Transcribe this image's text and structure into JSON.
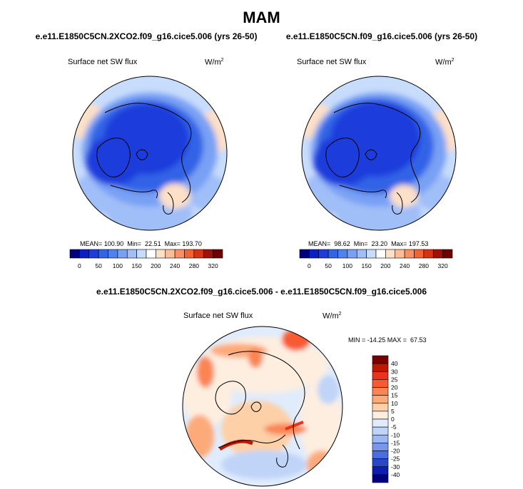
{
  "title": "MAM",
  "panels": [
    {
      "title": "e.e11.E1850C5CN.2XCO2.f09_g16.cice5.006 (yrs 26-50)",
      "variable": "Surface net SW flux",
      "unit": "W/m",
      "unit_sup": "2",
      "stats": "MEAN= 100.90  Min=  22.51  Max= 193.70"
    },
    {
      "title": "e.e11.E1850C5CN.f09_g16.cice5.006 (yrs 26-50)",
      "variable": "Surface net SW flux",
      "unit": "W/m",
      "unit_sup": "2",
      "stats": "MEAN=  98.62  Min=  23.20  Max= 197.53"
    },
    {
      "title": "e.e11.E1850C5CN.2XCO2.f09_g16.cice5.006 - e.e11.E1850C5CN.f09_g16.cice5.006",
      "variable": "Surface net SW flux",
      "unit": "W/m",
      "unit_sup": "2",
      "stats": "MIN = -14.25 MAX =  67.53"
    }
  ],
  "chart_data": [
    {
      "type": "heatmap",
      "projection": "polar stereographic (north)",
      "title": "e.e11.E1850C5CN.2XCO2.f09_g16.cice5.006 (yrs 26-50)",
      "subtitle": "Surface net SW flux",
      "units": "W/m2",
      "stats": {
        "mean": 100.9,
        "min": 22.51,
        "max": 193.7
      },
      "colorbar": {
        "orientation": "horizontal",
        "tick_labels": [
          "0",
          "50",
          "100",
          "150",
          "200",
          "240",
          "280",
          "320"
        ],
        "levels": [
          0,
          25,
          50,
          75,
          100,
          125,
          150,
          175,
          200,
          220,
          240,
          260,
          280,
          300,
          320
        ],
        "colors": [
          "#00007f",
          "#0a1ec8",
          "#1e3cdc",
          "#3264e6",
          "#5082ee",
          "#78a0f4",
          "#a0bef8",
          "#c8dcfc",
          "#ffffff",
          "#fde0c8",
          "#fcbc96",
          "#f99064",
          "#f26432",
          "#d73214",
          "#a01008",
          "#700000"
        ]
      }
    },
    {
      "type": "heatmap",
      "projection": "polar stereographic (north)",
      "title": "e.e11.E1850C5CN.f09_g16.cice5.006 (yrs 26-50)",
      "subtitle": "Surface net SW flux",
      "units": "W/m2",
      "stats": {
        "mean": 98.62,
        "min": 23.2,
        "max": 197.53
      },
      "colorbar": {
        "orientation": "horizontal",
        "tick_labels": [
          "0",
          "50",
          "100",
          "150",
          "200",
          "240",
          "280",
          "320"
        ],
        "levels": [
          0,
          25,
          50,
          75,
          100,
          125,
          150,
          175,
          200,
          220,
          240,
          260,
          280,
          300,
          320
        ],
        "colors": [
          "#00007f",
          "#0a1ec8",
          "#1e3cdc",
          "#3264e6",
          "#5082ee",
          "#78a0f4",
          "#a0bef8",
          "#c8dcfc",
          "#ffffff",
          "#fde0c8",
          "#fcbc96",
          "#f99064",
          "#f26432",
          "#d73214",
          "#a01008",
          "#700000"
        ]
      }
    },
    {
      "type": "heatmap",
      "projection": "polar stereographic (north)",
      "title": "e.e11.E1850C5CN.2XCO2.f09_g16.cice5.006 - e.e11.E1850C5CN.f09_g16.cice5.006",
      "subtitle": "Surface net SW flux",
      "units": "W/m2",
      "stats": {
        "min": -14.25,
        "max": 67.53
      },
      "colorbar": {
        "orientation": "vertical",
        "tick_labels": [
          "40",
          "30",
          "25",
          "20",
          "15",
          "10",
          "5",
          "0",
          "-5",
          "-10",
          "-15",
          "-20",
          "-25",
          "-30",
          "-40"
        ],
        "colors": [
          "#7a0000",
          "#c01800",
          "#e8341c",
          "#f85a32",
          "#fb8452",
          "#fdaa7a",
          "#fdd0a8",
          "#fdeee0",
          "#e0ecfc",
          "#c0d4f8",
          "#9cb8f4",
          "#7896ec",
          "#4a6ee0",
          "#2848cc",
          "#0c1eb0",
          "#00007f"
        ]
      }
    }
  ]
}
